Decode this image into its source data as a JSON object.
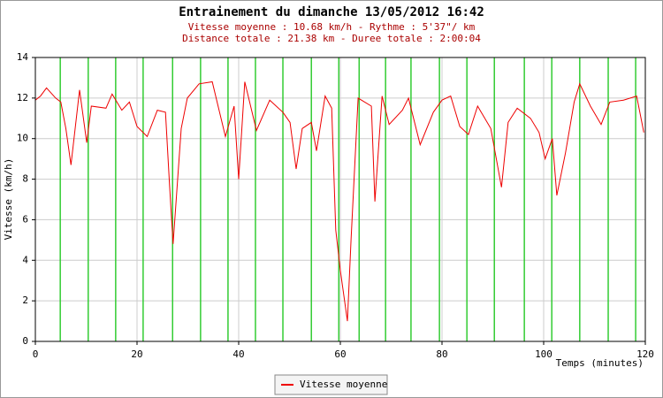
{
  "chart_data": {
    "type": "line",
    "title": "Entrainement du dimanche 13/05/2012 16:42",
    "subtitle": [
      "Vitesse moyenne : 10.68 km/h - Rythme : 5'37\"/ km",
      "Distance totale : 21.38 km - Duree totale : 2:00:04"
    ],
    "xlabel": "Temps (minutes)",
    "ylabel": "Vitesse (km/h)",
    "xlim": [
      0,
      120
    ],
    "ylim": [
      0,
      14
    ],
    "xticks": [
      0,
      20,
      40,
      60,
      80,
      100,
      120
    ],
    "yticks": [
      0,
      2,
      4,
      6,
      8,
      10,
      12,
      14
    ],
    "grid": true,
    "legend": "bottom",
    "vlines": {
      "color": "#33cc33",
      "x": [
        4.9,
        10.4,
        15.8,
        21.2,
        27.0,
        32.5,
        37.9,
        43.3,
        48.7,
        54.3,
        59.7,
        63.7,
        68.9,
        73.9,
        79.5,
        84.9,
        90.3,
        96.2,
        101.6,
        107.1,
        112.7,
        118.1
      ]
    },
    "series": [
      {
        "name": "Vitesse moyenne",
        "color": "#ee0000",
        "x": [
          0,
          1,
          2.2,
          4,
          5,
          6,
          7,
          8.7,
          10.1,
          11,
          13.9,
          15.1,
          17,
          18.5,
          20,
          22,
          24,
          25.6,
          26.4,
          27.1,
          28.7,
          29.9,
          32.2,
          34.8,
          37.4,
          39.1,
          40,
          41.2,
          43.5,
          46.1,
          48.7,
          50.1,
          51.3,
          52.5,
          54.3,
          55.3,
          57,
          58.3,
          59.1,
          60,
          61.4,
          62.1,
          63.5,
          66.1,
          66.8,
          68.2,
          69.6,
          72.2,
          73.4,
          75.7,
          78.3,
          80,
          81.7,
          83.5,
          85.2,
          87,
          89.6,
          91.7,
          93,
          94.8,
          97.4,
          99.1,
          100.3,
          101.7,
          102.6,
          104.3,
          106,
          107.1,
          109.2,
          111.3,
          113,
          115.7,
          118.3,
          119.7
        ],
        "values": [
          11.9,
          12.1,
          12.5,
          12.0,
          11.8,
          10.5,
          8.7,
          12.4,
          9.8,
          11.6,
          11.5,
          12.2,
          11.4,
          11.8,
          10.6,
          10.1,
          11.4,
          11.3,
          7.7,
          4.8,
          10.5,
          12.0,
          12.7,
          12.8,
          10.1,
          11.6,
          8.0,
          12.8,
          10.4,
          11.9,
          11.3,
          10.8,
          8.5,
          10.5,
          10.8,
          9.4,
          12.1,
          11.5,
          5.5,
          3.5,
          1.0,
          5.0,
          12.0,
          11.6,
          6.9,
          12.1,
          10.7,
          11.4,
          12.0,
          9.7,
          11.3,
          11.9,
          12.1,
          10.6,
          10.2,
          11.6,
          10.5,
          7.6,
          10.8,
          11.5,
          11.0,
          10.3,
          9.0,
          10.0,
          7.2,
          9.3,
          11.8,
          12.7,
          11.6,
          10.7,
          11.8,
          11.9,
          12.1,
          10.3
        ]
      }
    ]
  }
}
